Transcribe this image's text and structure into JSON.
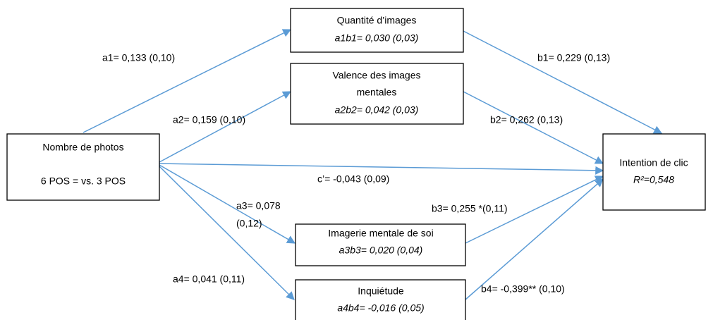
{
  "nodes": [
    {
      "lines": [
        "Nombre de photos",
        "6 POS = vs. 3 POS"
      ]
    },
    {
      "lines": [
        "Quantité d’images",
        "a1b1= 0,030 (0,03)"
      ]
    },
    {
      "lines": [
        "Valence des images",
        "mentales",
        "a2b2= 0,042 (0,03)"
      ]
    },
    {
      "lines": [
        "Imagerie mentale de soi",
        "a3b3= 0,020 (0,04)"
      ]
    },
    {
      "lines": [
        "Inquiétude",
        "a4b4= -0,016 (0,05)"
      ]
    },
    {
      "lines": [
        "Intention de clic",
        "R²=0,548"
      ]
    }
  ],
  "edges": [
    {
      "label": [
        "a1= 0,133 (0,10)"
      ]
    },
    {
      "label": [
        "a2= 0,159 (0,10)"
      ]
    },
    {
      "label": [
        "c’= -0,043 (0,09)"
      ]
    },
    {
      "label": [
        "a3= 0,078",
        "(0,12)"
      ]
    },
    {
      "label": [
        "a4= 0,041 (0,11)"
      ]
    },
    {
      "label": [
        "b1= 0,229 (0,13)"
      ]
    },
    {
      "label": [
        "b2= 0,262 (0,13)"
      ]
    },
    {
      "label": [
        "b3= 0,255 *(0,11)"
      ]
    },
    {
      "label": [
        "b4= -0,399** (0,10)"
      ]
    }
  ]
}
